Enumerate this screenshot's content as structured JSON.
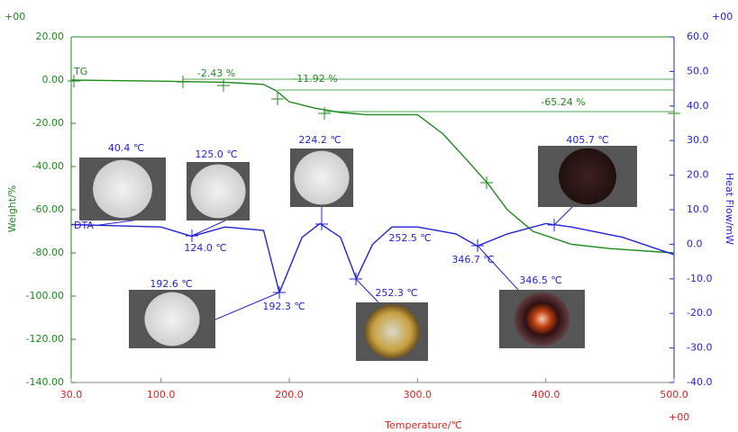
{
  "chart_data": {
    "type": "line",
    "corner_labels": [
      "+00",
      "+00",
      "+00"
    ],
    "xlabel": "Temperature/℃",
    "ylabel": "Weight/%",
    "y2label": "Heat Flow/mW",
    "xlim": [
      30,
      500
    ],
    "xticks": [
      {
        "value": 30,
        "label": "30.0"
      },
      {
        "value": 100,
        "label": "100.0"
      },
      {
        "value": 200,
        "label": "200.0"
      },
      {
        "value": 300,
        "label": "300.0"
      },
      {
        "value": 400,
        "label": "400.0"
      },
      {
        "value": 500,
        "label": "500.0"
      }
    ],
    "ylim": [
      -140,
      20
    ],
    "yticks": [
      {
        "value": 20,
        "label": "20.00"
      },
      {
        "value": 0,
        "label": "0.00"
      },
      {
        "value": -20,
        "label": "-20.00"
      },
      {
        "value": -40,
        "label": "-40.00"
      },
      {
        "value": -60,
        "label": "-60.00"
      },
      {
        "value": -80,
        "label": "-80.00"
      },
      {
        "value": -100,
        "label": "-100.00"
      },
      {
        "value": -120,
        "label": "-120.00"
      },
      {
        "value": -140,
        "label": "-140.00"
      }
    ],
    "y2lim": [
      -40,
      60
    ],
    "y2ticks": [
      {
        "value": 60,
        "label": "60.0"
      },
      {
        "value": 50,
        "label": "50.0"
      },
      {
        "value": 40,
        "label": "40.0"
      },
      {
        "value": 30,
        "label": "30.0"
      },
      {
        "value": 20,
        "label": "20.0"
      },
      {
        "value": 10,
        "label": "10.0"
      },
      {
        "value": 0,
        "label": "0.0"
      },
      {
        "value": -10,
        "label": "-10.0"
      },
      {
        "value": -20,
        "label": "-20.0"
      },
      {
        "value": -30,
        "label": "-30.0"
      },
      {
        "value": -40,
        "label": "-40.0"
      }
    ],
    "series": [
      {
        "name": "TG",
        "color": "#1f8a1f",
        "x": [
          30,
          100,
          150,
          180,
          190,
          200,
          220,
          240,
          260,
          300,
          320,
          340,
          355,
          370,
          390,
          420,
          450,
          500
        ],
        "values": [
          0,
          -0.5,
          -1,
          -2,
          -5,
          -10,
          -13,
          -15,
          -16,
          -16,
          -25,
          -38,
          -48,
          -60,
          -70,
          -76,
          -78,
          -80
        ]
      },
      {
        "name": "DTA",
        "color": "#2323d8",
        "axis": "y2",
        "x": [
          30,
          100,
          124,
          150,
          180,
          192.3,
          210,
          224,
          240,
          252.3,
          265,
          280,
          300,
          330,
          346.7,
          370,
          400,
          420,
          460,
          500
        ],
        "values": [
          5.7,
          5,
          2.3,
          5,
          4,
          -14,
          2,
          6,
          2,
          -10,
          0,
          5,
          5,
          3,
          -0.5,
          3,
          6,
          5,
          2,
          -3
        ]
      }
    ],
    "annotations": [
      "-2.43 %",
      "-11.92 %",
      "-65.24 %",
      "124.0 ℃",
      "192.3 ℃",
      "252.5 ℃",
      "346.7 ℃"
    ],
    "photo_labels": [
      "40.4 ℃",
      "125.0 ℃",
      "224.2 ℃",
      "405.7 ℃",
      "192.6 ℃",
      "252.3 ℃",
      "346.5 ℃"
    ]
  }
}
